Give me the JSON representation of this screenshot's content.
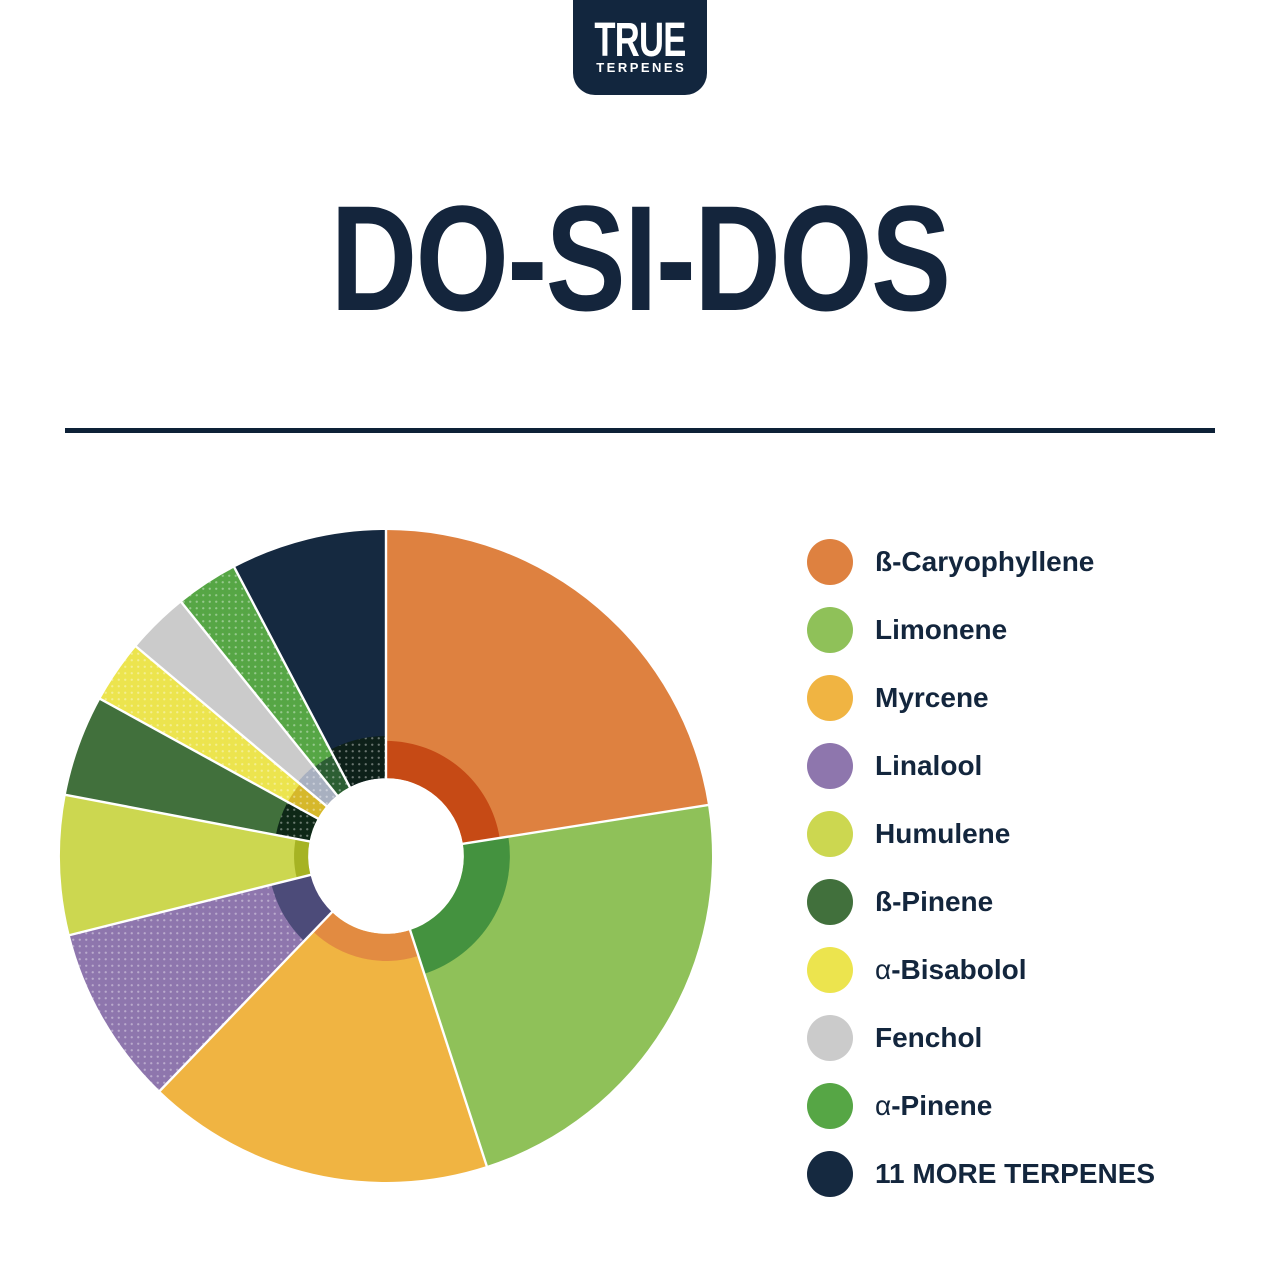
{
  "page": {
    "background": "#ffffff"
  },
  "logo": {
    "line1": "TRUE",
    "line2": "TERPENES",
    "bg_color": "#12263e",
    "text_color": "#ffffff"
  },
  "title": {
    "text": "DO-SI-DOS",
    "color": "#14253c"
  },
  "divider": {
    "color": "#0d2137"
  },
  "chart_data": {
    "type": "pie",
    "variant": "sunburst-donut",
    "description": "Terpene profile wheel for Do-Si-Dos. Outer ring slices with darker inner-ring arcs of varying depth and a white center hole. No numeric labels shown; values are percent of the wheel estimated from slice angles.",
    "units": "percent of wheel (estimated)",
    "start_angle_deg": 0,
    "direction": "clockwise",
    "slices": [
      {
        "name": "ß-Caryophyllene",
        "value": 22.5,
        "color": "#de8140",
        "inner_color": "#c64a15",
        "inner_radius_ratio": 0.353,
        "dotted_outer": false,
        "dotted_inner": false
      },
      {
        "name": "Limonene",
        "value": 22.5,
        "color": "#8fc159",
        "inner_color": "#44923f",
        "inner_radius_ratio": 0.38,
        "dotted_outer": false,
        "dotted_inner": false
      },
      {
        "name": "Myrcene",
        "value": 17.2,
        "color": "#f0b442",
        "inner_color": "#e28b41",
        "inner_radius_ratio": 0.322,
        "dotted_outer": false,
        "dotted_inner": false
      },
      {
        "name": "Linalool",
        "value": 8.9,
        "color": "#8e76ad",
        "inner_color": "#4c4b79",
        "inner_radius_ratio": 0.362,
        "dotted_outer": true,
        "dotted_inner": false
      },
      {
        "name": "Humulene",
        "value": 6.9,
        "color": "#ccd750",
        "inner_color": "#a6b323",
        "inner_radius_ratio": 0.282,
        "dotted_outer": false,
        "dotted_inner": false
      },
      {
        "name": "ß-Pinene",
        "value": 5.0,
        "color": "#41703c",
        "inner_color": "#0e2817",
        "inner_radius_ratio": 0.344,
        "dotted_outer": false,
        "dotted_inner": true
      },
      {
        "name": "α-Bisabolol",
        "value": 3.1,
        "color": "#ece44e",
        "inner_color": "#d6b82b",
        "inner_radius_ratio": 0.344,
        "dotted_outer": true,
        "dotted_inner": true
      },
      {
        "name": "Fenchol",
        "value": 3.1,
        "color": "#cbcbcb",
        "inner_color": "#a8b0c0",
        "inner_radius_ratio": 0.353,
        "dotted_outer": false,
        "dotted_inner": true
      },
      {
        "name": "α-Pinene",
        "value": 3.1,
        "color": "#56a645",
        "inner_color": "#2c5e33",
        "inner_radius_ratio": 0.35,
        "dotted_outer": true,
        "dotted_inner": true
      },
      {
        "name": "11 More Terpenes",
        "value": 7.7,
        "color": "#152940",
        "inner_color": "#0d2019",
        "inner_radius_ratio": 0.368,
        "dotted_outer": false,
        "dotted_inner": true
      }
    ],
    "geometry": {
      "outer_radius": 326,
      "hole_radius_ratio": 0.239,
      "separator_color": "#ffffff",
      "separator_width": 2.4
    },
    "legend_position": "right"
  },
  "legend": {
    "items": [
      {
        "prefix": "",
        "label": "ß-Caryophyllene",
        "color": "#de8140",
        "dotted": false
      },
      {
        "prefix": "",
        "label": "Limonene",
        "color": "#8fc159",
        "dotted": false
      },
      {
        "prefix": "",
        "label": "Myrcene",
        "color": "#f0b442",
        "dotted": false
      },
      {
        "prefix": "",
        "label": "Linalool",
        "color": "#8e76ad",
        "dotted": true
      },
      {
        "prefix": "",
        "label": "Humulene",
        "color": "#ccd750",
        "dotted": false
      },
      {
        "prefix": "",
        "label": "ß-Pinene",
        "color": "#41703c",
        "dotted": false
      },
      {
        "prefix": "α",
        "label": "-Bisabolol",
        "color": "#ece44e",
        "dotted": true
      },
      {
        "prefix": "",
        "label": "Fenchol",
        "color": "#cbcbcb",
        "dotted": false
      },
      {
        "prefix": "α",
        "label": "-Pinene",
        "color": "#56a645",
        "dotted": true
      },
      {
        "prefix": "",
        "label": "11 MORE TERPENES",
        "color": "#152940",
        "dotted": false
      }
    ]
  }
}
